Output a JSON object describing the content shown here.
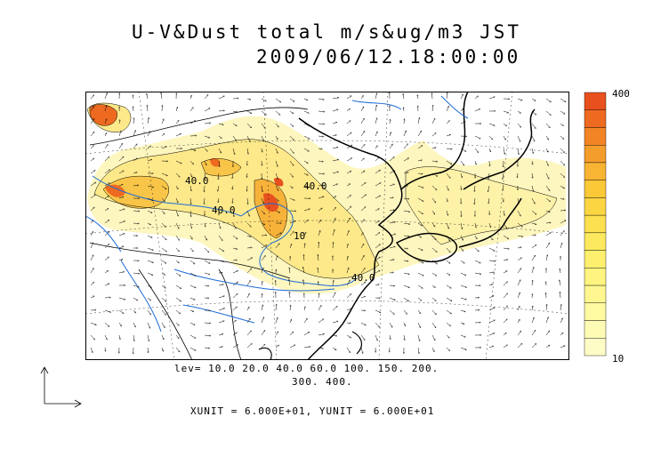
{
  "title": {
    "line1": "U-V&Dust total m/s&ug/m3 JST",
    "line2": "2009/06/12.18:00:00"
  },
  "contour_labels": [
    "40.0",
    "40.0",
    "40.0",
    "40.0",
    "10"
  ],
  "levels": {
    "line1": "lev= 10.0 20.0 40.0 60.0 100. 150. 200.",
    "line2": "300. 400."
  },
  "units_text": "XUNIT = 6.000E+01, YUNIT = 6.000E+01",
  "colorbar": {
    "max_label": "400",
    "min_label": "10",
    "colors": [
      "#e8501e",
      "#ee6a20",
      "#f28426",
      "#f59d2c",
      "#f8b433",
      "#fbc838",
      "#fcd642",
      "#fde050",
      "#fde95f",
      "#fef06f",
      "#fef47f",
      "#fef790",
      "#fefaa2",
      "#fefbb4",
      "#fefcc6"
    ]
  },
  "colors": {
    "dust_low": "#fdf6bf",
    "dust_mid": "#fde98a",
    "dust_high": "#f7b23a",
    "dust_peak": "#e8501e",
    "rivers": "#1e6bd6",
    "coast": "#000000"
  }
}
